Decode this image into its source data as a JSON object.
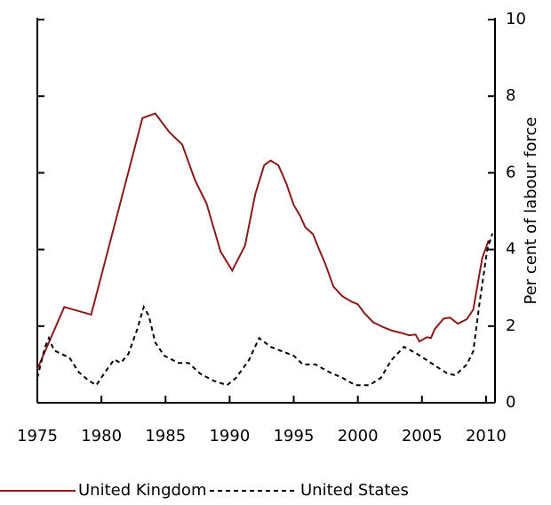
{
  "chart_data": {
    "type": "line",
    "ylabel": "Per cent of labour force",
    "xlim": [
      1975,
      2010.7
    ],
    "xticks": [
      1975,
      1980,
      1985,
      1990,
      1995,
      2000,
      2005,
      2010
    ],
    "ylim": [
      0,
      10
    ],
    "yticks": [
      0,
      2,
      4,
      6,
      8,
      10
    ],
    "legend": "bottom",
    "series": [
      {
        "name": "United Kingdom",
        "color": "#8b1a1a",
        "dash": "solid",
        "x": [
          1975.0,
          1977.1,
          1979.2,
          1983.2,
          1984.2,
          1985.3,
          1986.3,
          1987.3,
          1988.2,
          1989.3,
          1990.2,
          1991.2,
          1992.0,
          1992.7,
          1993.2,
          1993.8,
          1994.4,
          1995.0,
          1995.5,
          1995.9,
          1996.5,
          1996.9,
          1997.5,
          1998.1,
          1998.8,
          1999.5,
          2000.0,
          2000.5,
          2001.2,
          2002.0,
          2002.7,
          2003.3,
          2004.0,
          2004.5,
          2004.8,
          2005.4,
          2005.7,
          2006.0,
          2006.7,
          2007.2,
          2007.8,
          2008.5,
          2009.0,
          2009.7,
          2010.2
        ],
        "values": [
          0.88,
          2.5,
          2.3,
          7.43,
          7.55,
          7.06,
          6.74,
          5.81,
          5.2,
          3.94,
          3.45,
          4.1,
          5.44,
          6.2,
          6.32,
          6.2,
          5.74,
          5.16,
          4.88,
          4.58,
          4.4,
          4.07,
          3.59,
          3.03,
          2.78,
          2.64,
          2.57,
          2.34,
          2.1,
          1.97,
          1.88,
          1.83,
          1.76,
          1.78,
          1.6,
          1.71,
          1.69,
          1.92,
          2.2,
          2.22,
          2.06,
          2.18,
          2.43,
          3.77,
          4.24
        ]
      },
      {
        "name": "United States",
        "color": "#000000",
        "dash": "dashed",
        "x": [
          1975.0,
          1975.6,
          1975.9,
          1976.3,
          1976.9,
          1977.5,
          1978.2,
          1979.0,
          1979.6,
          1980.3,
          1981.0,
          1981.5,
          1982.1,
          1982.8,
          1983.3,
          1983.7,
          1984.2,
          1984.9,
          1986.0,
          1986.8,
          1987.7,
          1988.7,
          1989.8,
          1990.5,
          1991.5,
          1992.3,
          1993.2,
          1994.1,
          1995.0,
          1995.7,
          1996.7,
          1997.7,
          1998.8,
          1999.8,
          2000.9,
          2001.8,
          2002.6,
          2003.6,
          2004.5,
          2005.4,
          2006.2,
          2007.0,
          2007.6,
          2008.5,
          2009.0,
          2009.5,
          2010.1,
          2010.5
        ],
        "values": [
          0.65,
          1.46,
          1.69,
          1.37,
          1.27,
          1.18,
          0.81,
          0.58,
          0.46,
          0.81,
          1.13,
          1.04,
          1.27,
          1.92,
          2.5,
          2.27,
          1.57,
          1.23,
          1.04,
          1.04,
          0.76,
          0.58,
          0.46,
          0.65,
          1.11,
          1.69,
          1.46,
          1.34,
          1.23,
          1.0,
          1.0,
          0.81,
          0.65,
          0.46,
          0.46,
          0.65,
          1.11,
          1.46,
          1.3,
          1.11,
          0.93,
          0.76,
          0.72,
          1.0,
          1.34,
          2.62,
          4.0,
          4.42
        ]
      }
    ]
  }
}
